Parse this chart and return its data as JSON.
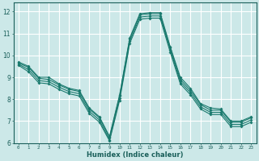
{
  "xlabel": "Humidex (Indice chaleur)",
  "ylabel": "",
  "bg_color": "#cce8e8",
  "grid_color": "#ffffff",
  "line_color": "#1a7a6e",
  "xlim": [
    -0.5,
    23.5
  ],
  "ylim": [
    6.0,
    12.4
  ],
  "yticks": [
    6,
    7,
    8,
    9,
    10,
    11,
    12
  ],
  "xticks": [
    0,
    1,
    2,
    3,
    4,
    5,
    6,
    7,
    8,
    9,
    10,
    11,
    12,
    13,
    14,
    15,
    16,
    17,
    18,
    19,
    20,
    21,
    22,
    23
  ],
  "lines": [
    [
      9.7,
      9.5,
      9.0,
      9.0,
      8.7,
      8.5,
      8.4,
      7.6,
      7.2,
      6.3,
      8.2,
      10.8,
      11.9,
      11.95,
      11.95,
      10.4,
      9.0,
      8.5,
      7.8,
      7.6,
      7.55,
      7.0,
      7.0,
      7.2
    ],
    [
      9.65,
      9.45,
      8.95,
      8.9,
      8.65,
      8.45,
      8.35,
      7.55,
      7.15,
      6.25,
      8.15,
      10.75,
      11.85,
      11.9,
      11.9,
      10.35,
      8.9,
      8.4,
      7.75,
      7.5,
      7.5,
      6.95,
      6.95,
      7.15
    ],
    [
      9.6,
      9.35,
      8.85,
      8.8,
      8.55,
      8.35,
      8.25,
      7.45,
      7.05,
      6.15,
      8.05,
      10.65,
      11.75,
      11.8,
      11.8,
      10.25,
      8.8,
      8.3,
      7.65,
      7.4,
      7.4,
      6.85,
      6.85,
      7.05
    ],
    [
      9.55,
      9.25,
      8.75,
      8.7,
      8.45,
      8.25,
      8.15,
      7.35,
      6.95,
      6.1,
      7.95,
      10.55,
      11.65,
      11.7,
      11.7,
      10.15,
      8.7,
      8.2,
      7.55,
      7.3,
      7.3,
      6.75,
      6.75,
      6.95
    ]
  ]
}
